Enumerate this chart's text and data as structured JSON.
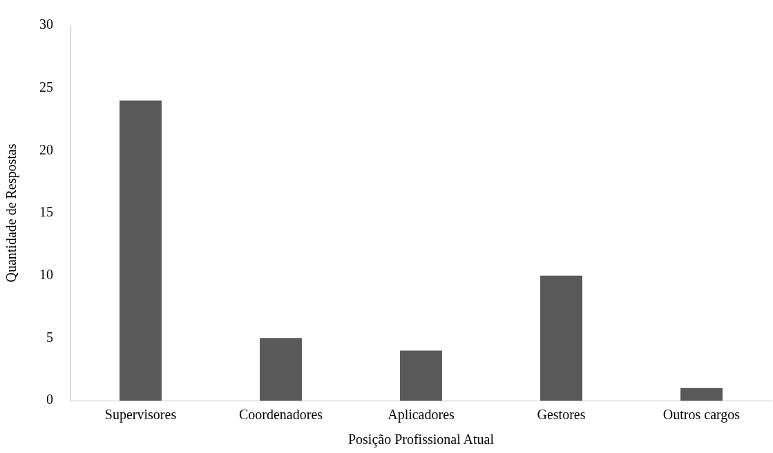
{
  "chart_data": {
    "type": "bar",
    "xlabel": "Posição Profissional Atual",
    "ylabel": "Quantidade de Respostas",
    "categories": [
      "Supervisores",
      "Coordenadores",
      "Aplicadores",
      "Gestores",
      "Outros cargos"
    ],
    "values": [
      24,
      5,
      4,
      10,
      1
    ],
    "color": "#595959",
    "ylim": [
      0,
      30
    ],
    "yticks": [
      0,
      5,
      10,
      15,
      20,
      25,
      30
    ],
    "grid": false,
    "legend": false
  }
}
